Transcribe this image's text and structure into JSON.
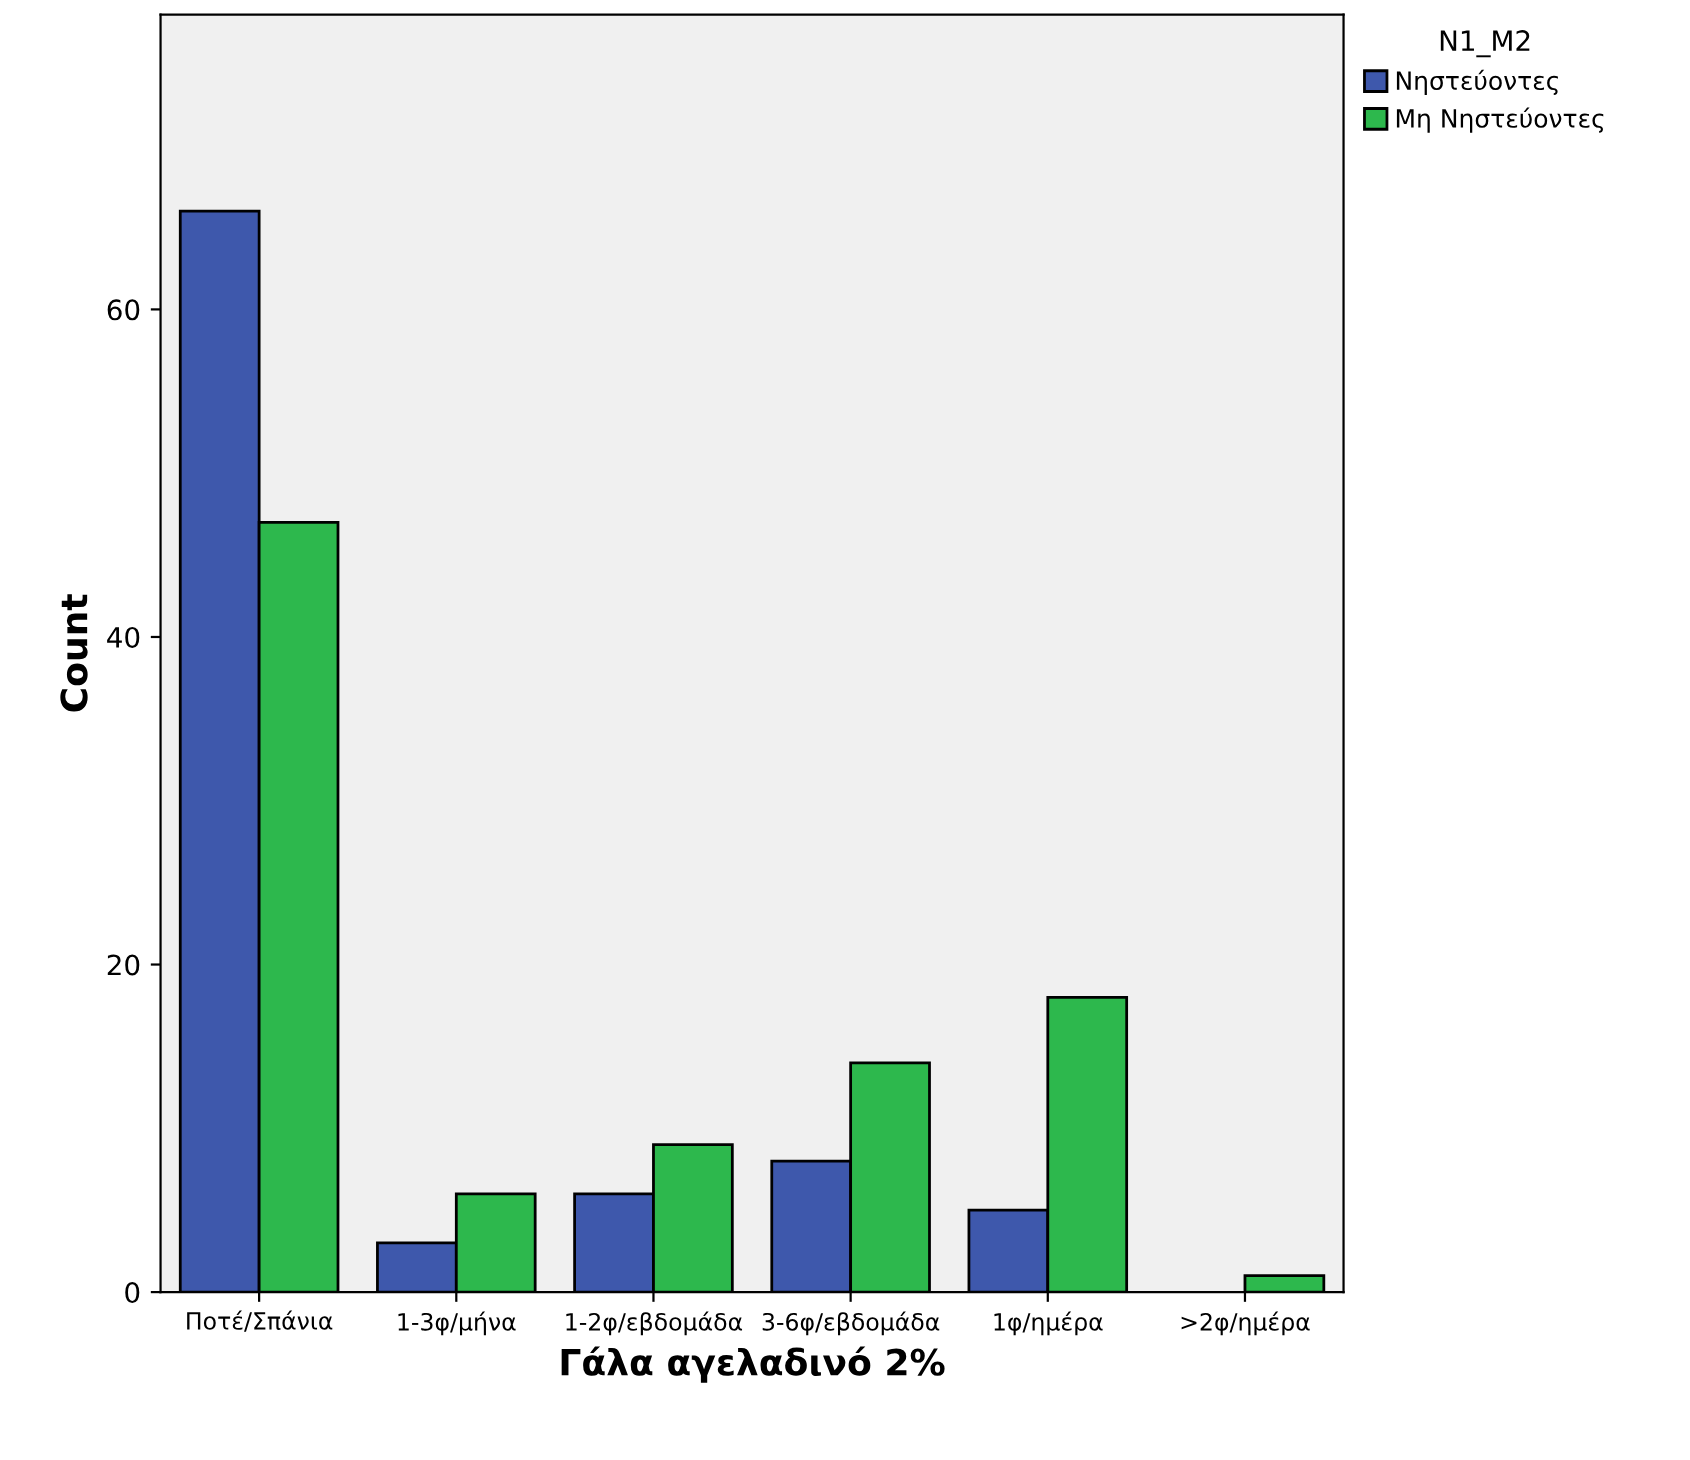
{
  "chart_data": {
    "type": "bar",
    "xlabel": "Γάλα αγελαδινό 2%",
    "ylabel": "Count",
    "legend_title": "N1_M2",
    "legend": "top right",
    "categories": [
      "Ποτέ/Σπάνια",
      "1-3φ/μήνα",
      "1-2φ/εβδομάδα",
      "3-6φ/εβδομάδα",
      "1φ/ημέρα",
      ">2φ/ημέρα"
    ],
    "series": [
      {
        "name": "Νηστεύοντες",
        "color": "#3e58ac",
        "values": [
          66,
          3,
          6,
          8,
          5,
          null
        ]
      },
      {
        "name": "Μη Νηστεύοντες",
        "color": "#2db84d",
        "values": [
          47,
          6,
          9,
          14,
          18,
          1
        ]
      }
    ],
    "ylim": [
      0,
      78
    ],
    "yticks": [
      0,
      20,
      40,
      60
    ],
    "grid": false
  }
}
